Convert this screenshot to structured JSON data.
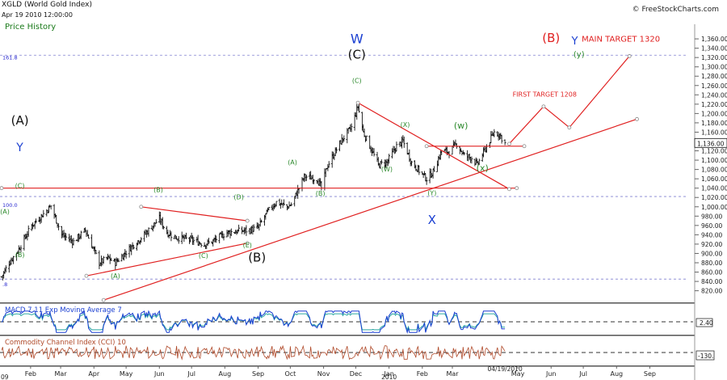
{
  "header": {
    "title": "XGLD (World Gold Index)",
    "date": "Apr 19 2010 12:00:00",
    "price_history_label": "Price History",
    "logo_text": "FreeStockCharts.com",
    "logo_icon": "copyright-icon"
  },
  "chart_data": [
    {
      "type": "candlestick",
      "title": "XGLD (World Gold Index)",
      "y_ticks": [
        820,
        840,
        860,
        880,
        900,
        920,
        940,
        960,
        980,
        1000,
        1020,
        1040,
        1060,
        1080,
        1100,
        1120,
        1140,
        1160,
        1180,
        1200,
        1220,
        1240,
        1260,
        1280,
        1300,
        1320,
        1340,
        1360
      ],
      "y_tick_labels": [
        "820.00",
        "840.00",
        "860.00",
        "880.00",
        "900.00",
        "920.00",
        "940.00",
        "960.00",
        "980.00",
        "1,000.00",
        "1,020.00",
        "1,040.00",
        "1,060.00",
        "1,080.00",
        "1,100.00",
        "1,120.00",
        "1,140.00",
        "1,160.00",
        "1,180.00",
        "1,200.00",
        "1,220.00",
        "1,240.00",
        "1,260.00",
        "1,280.00",
        "1,300.00",
        "1,320.00",
        "1,340.00",
        "1,360.00"
      ],
      "ylim": [
        802,
        1374
      ],
      "x_start": "2009-01-05",
      "x_end": "2010-09-30",
      "x_ticks": [
        {
          "date": "2009-02-01",
          "label": "Feb"
        },
        {
          "date": "2009-03-01",
          "label": "Mar"
        },
        {
          "date": "2009-04-01",
          "label": "Apr"
        },
        {
          "date": "2009-05-01",
          "label": "May"
        },
        {
          "date": "2009-06-01",
          "label": "Jun"
        },
        {
          "date": "2009-07-01",
          "label": "Jul"
        },
        {
          "date": "2009-08-01",
          "label": "Aug"
        },
        {
          "date": "2009-09-01",
          "label": "Sep"
        },
        {
          "date": "2009-10-01",
          "label": "Oct"
        },
        {
          "date": "2009-11-01",
          "label": "Nov"
        },
        {
          "date": "2009-12-01",
          "label": "Dec"
        },
        {
          "date": "2010-01-01",
          "label": "Jan"
        },
        {
          "date": "2010-02-01",
          "label": "Feb"
        },
        {
          "date": "2010-03-01",
          "label": "Mar"
        },
        {
          "date": "2010-05-01",
          "label": "May"
        },
        {
          "date": "2010-06-01",
          "label": "Jun"
        },
        {
          "date": "2010-07-01",
          "label": "Jul"
        },
        {
          "date": "2010-08-01",
          "label": "Aug"
        },
        {
          "date": "2010-09-01",
          "label": "Sep"
        }
      ],
      "x_edge_labels": [
        {
          "date": "2009-01-05",
          "label": "09"
        },
        {
          "date": "2010-01-01",
          "label": "2010"
        },
        {
          "date": "2010-04-19",
          "label": "04/19/2010"
        }
      ],
      "close_anchors": [
        [
          "2009-01-05",
          850
        ],
        [
          "2009-01-12",
          880
        ],
        [
          "2009-01-20",
          905
        ],
        [
          "2009-02-02",
          960
        ],
        [
          "2009-02-13",
          985
        ],
        [
          "2009-02-20",
          1002
        ],
        [
          "2009-03-02",
          940
        ],
        [
          "2009-03-13",
          925
        ],
        [
          "2009-03-24",
          950
        ],
        [
          "2009-04-06",
          880
        ],
        [
          "2009-04-14",
          890
        ],
        [
          "2009-04-21",
          880
        ],
        [
          "2009-05-04",
          910
        ],
        [
          "2009-05-18",
          940
        ],
        [
          "2009-06-01",
          975
        ],
        [
          "2009-06-08",
          945
        ],
        [
          "2009-06-15",
          935
        ],
        [
          "2009-06-29",
          930
        ],
        [
          "2009-07-13",
          920
        ],
        [
          "2009-07-20",
          925
        ],
        [
          "2009-08-03",
          945
        ],
        [
          "2009-08-24",
          950
        ],
        [
          "2009-09-01",
          955
        ],
        [
          "2009-09-10",
          990
        ],
        [
          "2009-09-18",
          1010
        ],
        [
          "2009-09-28",
          1000
        ],
        [
          "2009-10-02",
          1005
        ],
        [
          "2009-10-14",
          1065
        ],
        [
          "2009-10-26",
          1060
        ],
        [
          "2009-10-30",
          1040
        ],
        [
          "2009-11-04",
          1085
        ],
        [
          "2009-11-17",
          1140
        ],
        [
          "2009-11-27",
          1170
        ],
        [
          "2009-12-03",
          1215
        ],
        [
          "2009-12-08",
          1160
        ],
        [
          "2009-12-15",
          1125
        ],
        [
          "2009-12-22",
          1090
        ],
        [
          "2009-12-30",
          1095
        ],
        [
          "2010-01-08",
          1130
        ],
        [
          "2010-01-14",
          1140
        ],
        [
          "2010-01-22",
          1095
        ],
        [
          "2010-02-05",
          1060
        ],
        [
          "2010-02-11",
          1075
        ],
        [
          "2010-02-19",
          1120
        ],
        [
          "2010-02-26",
          1118
        ],
        [
          "2010-03-05",
          1135
        ],
        [
          "2010-03-12",
          1110
        ],
        [
          "2010-03-19",
          1105
        ],
        [
          "2010-03-24",
          1090
        ],
        [
          "2010-04-01",
          1125
        ],
        [
          "2010-04-09",
          1160
        ],
        [
          "2010-04-14",
          1155
        ],
        [
          "2010-04-19",
          1136
        ]
      ],
      "last_price_label": "1,136.00",
      "lines": [
        {
          "name": "resistance-line",
          "color": "#e02020",
          "points": [
            [
              "2009-01-05",
              1040
            ],
            [
              "2010-04-30",
              1040
            ]
          ]
        },
        {
          "name": "rising-support-line",
          "color": "#e02020",
          "points": [
            [
              "2009-04-10",
              800
            ],
            [
              "2010-08-20",
              1188
            ]
          ]
        },
        {
          "name": "falling-trend-line",
          "color": "#e02020",
          "points": [
            [
              "2009-12-03",
              1223
            ],
            [
              "2010-04-23",
              1038
            ]
          ]
        },
        {
          "name": "triangle-upper-line",
          "color": "#e02020",
          "points": [
            [
              "2009-05-15",
              1000
            ],
            [
              "2009-08-22",
              970
            ]
          ]
        },
        {
          "name": "triangle-lower-line",
          "color": "#e02020",
          "points": [
            [
              "2009-03-25",
              852
            ],
            [
              "2009-08-22",
              922
            ]
          ]
        },
        {
          "name": "neckline",
          "color": "#e02020",
          "points": [
            [
              "2010-02-05",
              1130
            ],
            [
              "2010-05-07",
              1130
            ]
          ]
        },
        {
          "name": "projection-path",
          "color": "#e02020",
          "points": [
            [
              "2010-04-23",
              1135
            ],
            [
              "2010-05-25",
              1215
            ],
            [
              "2010-06-18",
              1170
            ],
            [
              "2010-08-13",
              1323
            ]
          ]
        }
      ],
      "hlines": [
        {
          "y": 1325,
          "label": "161.8"
        },
        {
          "y": 1022,
          "label": "100.0"
        },
        {
          "y": 845,
          "label": ".8"
        }
      ],
      "annotations": [
        {
          "text": "W",
          "date": "2009-12-02",
          "y": 1351,
          "color": "#1a3fd1",
          "size": 16
        },
        {
          "text": "(C)",
          "date": "2009-12-02",
          "y": 1318,
          "color": "#111111",
          "size": 15
        },
        {
          "text": "(B)",
          "date": "2010-06-01",
          "y": 1353,
          "color": "#e02020",
          "size": 15
        },
        {
          "text": "Y",
          "date": "2010-06-23",
          "y": 1348,
          "color": "#1a3fd1",
          "size": 13
        },
        {
          "text": "MAIN TARGET 1320",
          "date": "2010-08-05",
          "y": 1354,
          "color": "#e02020",
          "size": 10
        },
        {
          "text": "(y)",
          "date": "2010-06-27",
          "y": 1321,
          "color": "#2d8a2d",
          "size": 10
        },
        {
          "text": "FIRST TARGET 1208",
          "date": "2010-05-26",
          "y": 1236,
          "color": "#e02020",
          "size": 8
        },
        {
          "text": "(A)",
          "date": "2009-01-22",
          "y": 1176,
          "color": "#111111",
          "size": 15
        },
        {
          "text": "Y",
          "date": "2009-01-22",
          "y": 1119,
          "color": "#1a3fd1",
          "size": 14
        },
        {
          "text": "(C)",
          "date": "2009-01-22",
          "y": 1040,
          "color": "#2d8a2d",
          "size": 8
        },
        {
          "text": "(A)",
          "date": "2009-01-08",
          "y": 985,
          "color": "#2d8a2d",
          "size": 8
        },
        {
          "text": "(B)",
          "date": "2009-01-22",
          "y": 892,
          "color": "#2d8a2d",
          "size": 8
        },
        {
          "text": "(A)",
          "date": "2009-04-21",
          "y": 847,
          "color": "#2d8a2d",
          "size": 8
        },
        {
          "text": "(B)",
          "date": "2009-05-31",
          "y": 1032,
          "color": "#2d8a2d",
          "size": 8
        },
        {
          "text": "(C)",
          "date": "2009-07-12",
          "y": 890,
          "color": "#2d8a2d",
          "size": 8
        },
        {
          "text": "(D)",
          "date": "2009-08-14",
          "y": 1016,
          "color": "#2d8a2d",
          "size": 8
        },
        {
          "text": "(E)",
          "date": "2009-08-22",
          "y": 913,
          "color": "#2d8a2d",
          "size": 8
        },
        {
          "text": "(B)",
          "date": "2009-08-31",
          "y": 883,
          "color": "#111111",
          "size": 15
        },
        {
          "text": "(A)",
          "date": "2009-10-03",
          "y": 1091,
          "color": "#2d8a2d",
          "size": 8
        },
        {
          "text": "(B)",
          "date": "2009-10-29",
          "y": 1024,
          "color": "#2d8a2d",
          "size": 8
        },
        {
          "text": "(C)",
          "date": "2009-12-02",
          "y": 1266,
          "color": "#2d8a2d",
          "size": 8
        },
        {
          "text": "(X)",
          "date": "2010-01-16",
          "y": 1171,
          "color": "#2d8a2d",
          "size": 8
        },
        {
          "text": "(W)",
          "date": "2009-12-30",
          "y": 1076,
          "color": "#2d8a2d",
          "size": 8
        },
        {
          "text": "(w)",
          "date": "2010-03-09",
          "y": 1168,
          "color": "#2d8a2d",
          "size": 11
        },
        {
          "text": "(x)",
          "date": "2010-03-29",
          "y": 1077,
          "color": "#2d8a2d",
          "size": 11
        },
        {
          "text": "(Y)",
          "date": "2010-02-10",
          "y": 1025,
          "color": "#2d8a2d",
          "size": 8
        },
        {
          "text": "X",
          "date": "2010-02-10",
          "y": 963,
          "color": "#1a3fd1",
          "size": 15
        }
      ]
    },
    {
      "type": "line",
      "title": "MACD 7 11   Exp Moving Average 7",
      "value_label": "2.40",
      "ylim": [
        -35,
        35
      ],
      "series": [
        {
          "color": "#1a3fd1"
        },
        {
          "color": "#2aa7a0"
        }
      ]
    },
    {
      "type": "line",
      "title": "Commodity Channel Index (CCI) 10",
      "value_label": "-130.",
      "ylim": [
        -300,
        300
      ],
      "series": [
        {
          "color": "#b04a2a"
        }
      ]
    }
  ]
}
